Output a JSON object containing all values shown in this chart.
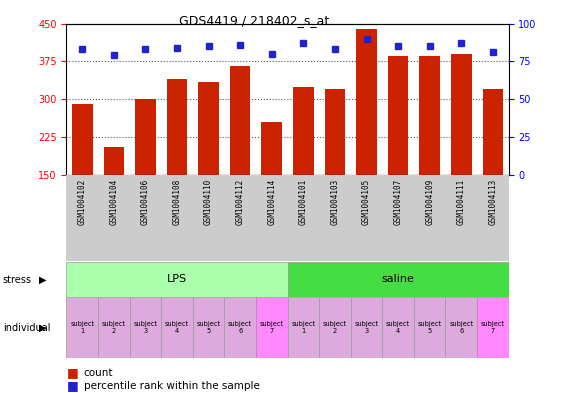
{
  "title": "GDS4419 / 218402_s_at",
  "samples": [
    "GSM1004102",
    "GSM1004104",
    "GSM1004106",
    "GSM1004108",
    "GSM1004110",
    "GSM1004112",
    "GSM1004114",
    "GSM1004101",
    "GSM1004103",
    "GSM1004105",
    "GSM1004107",
    "GSM1004109",
    "GSM1004111",
    "GSM1004113"
  ],
  "counts": [
    290,
    205,
    300,
    340,
    335,
    365,
    255,
    325,
    320,
    440,
    385,
    385,
    390,
    320
  ],
  "percentiles": [
    83,
    79,
    83,
    84,
    85,
    86,
    80,
    87,
    83,
    90,
    85,
    85,
    87,
    81
  ],
  "ymin": 150,
  "ymax": 450,
  "yticks": [
    150,
    225,
    300,
    375,
    450
  ],
  "y2ticks": [
    0,
    25,
    50,
    75,
    100
  ],
  "bar_color": "#CC2200",
  "dot_color": "#2222CC",
  "stress_groups": [
    {
      "label": "LPS",
      "start": 0,
      "end": 7,
      "color": "#AAFFAA"
    },
    {
      "label": "saline",
      "start": 7,
      "end": 14,
      "color": "#44DD44"
    }
  ],
  "light_purple": "#DDAADD",
  "bright_purple": "#FF88FF",
  "subject_labels": [
    "subject\n1",
    "subject\n2",
    "subject\n3",
    "subject\n4",
    "subject\n5",
    "subject\n6",
    "subject\n7"
  ],
  "grid_levels": [
    225,
    300,
    375
  ],
  "dotted_line_color": "#555555",
  "xtick_bg": "#CCCCCC"
}
